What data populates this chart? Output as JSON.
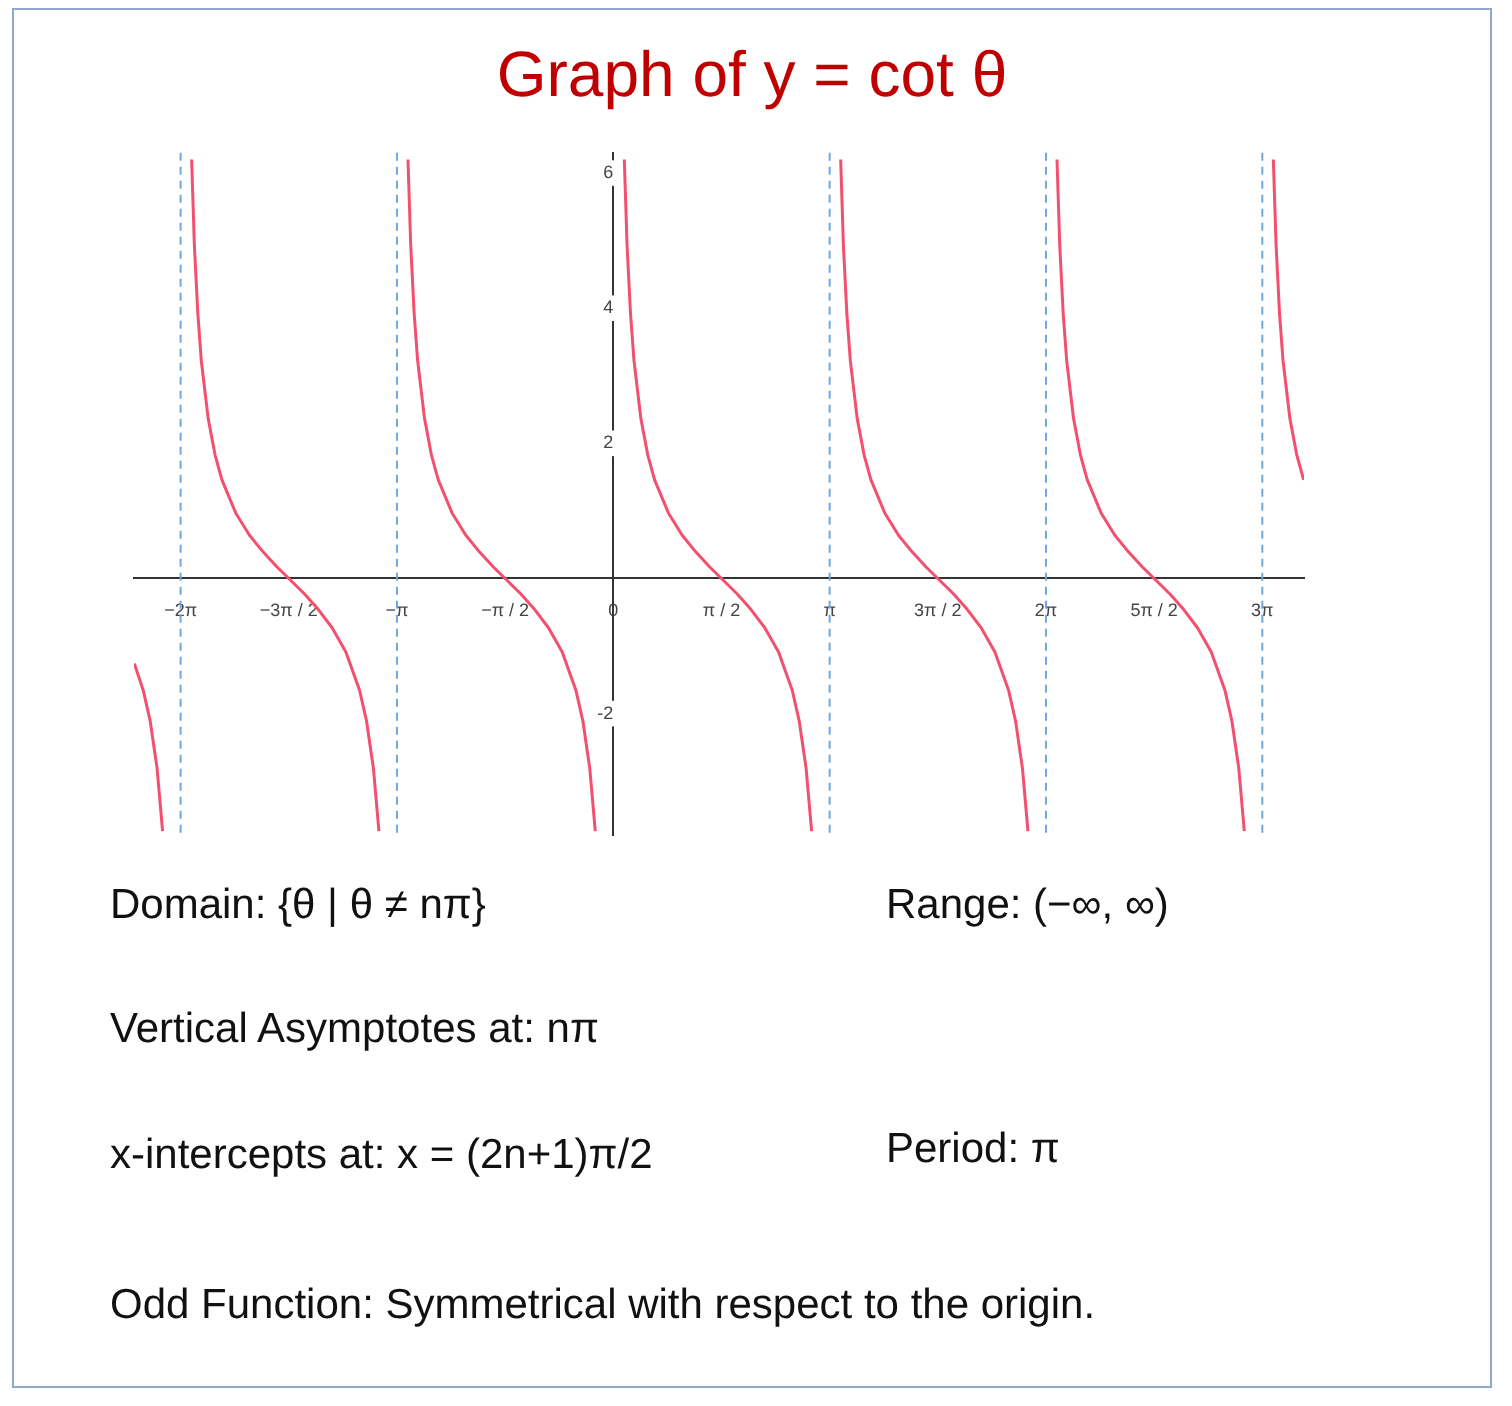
{
  "chart_data": {
    "type": "line",
    "title": "Graph of y = cot θ",
    "xlim": [
      -6.96,
      10.03
    ],
    "ylim": [
      -3.8,
      6.3
    ],
    "xticks": [
      {
        "value": -6.2832,
        "label": "−2π"
      },
      {
        "value": -4.7124,
        "label": "−3π / 2"
      },
      {
        "value": -3.1416,
        "label": "−π"
      },
      {
        "value": -1.5708,
        "label": "−π / 2"
      },
      {
        "value": 0,
        "label": "0"
      },
      {
        "value": 1.5708,
        "label": "π / 2"
      },
      {
        "value": 3.1416,
        "label": "π"
      },
      {
        "value": 4.7124,
        "label": "3π / 2"
      },
      {
        "value": 6.2832,
        "label": "2π"
      },
      {
        "value": 7.854,
        "label": "5π / 2"
      },
      {
        "value": 9.4248,
        "label": "3π"
      }
    ],
    "yticks": [
      -2,
      2,
      4,
      6
    ],
    "grid": false,
    "legend": false,
    "marker": "none",
    "line_style": "solid",
    "series": [
      {
        "color": "#f2506e",
        "x": [
          -6.9548,
          -6.8248,
          -6.7248,
          -6.6248,
          -6.5448
        ],
        "values": [
          -1.26,
          -1.66,
          -2.11,
          -2.81,
          -3.74
        ]
      },
      {
        "color": "#f2506e",
        "x": [
          -6.1232,
          -6.0832,
          -6.0332,
          -5.9832,
          -5.8832,
          -5.7832,
          -5.6832,
          -5.4832,
          -5.2832,
          -5.0832,
          -4.8832,
          -4.7124,
          -4.4832,
          -4.2832,
          -4.0832,
          -3.8832,
          -3.6832,
          -3.5832,
          -3.4832,
          -3.4032
        ],
        "values": [
          6.2,
          4.93,
          3.92,
          3.23,
          2.37,
          1.83,
          1.46,
          0.97,
          0.64,
          0.39,
          0.17,
          0,
          -0.23,
          -0.46,
          -0.73,
          -1.09,
          -1.66,
          -2.11,
          -2.81,
          -3.74
        ]
      },
      {
        "color": "#f2506e",
        "x": [
          -2.9816,
          -2.9416,
          -2.8916,
          -2.8416,
          -2.7416,
          -2.6416,
          -2.5416,
          -2.3416,
          -2.1416,
          -1.9416,
          -1.7416,
          -1.5708,
          -1.3416,
          -1.1416,
          -0.9416,
          -0.7416,
          -0.5416,
          -0.4416,
          -0.3416,
          -0.2616
        ],
        "values": [
          6.2,
          4.93,
          3.92,
          3.23,
          2.37,
          1.83,
          1.46,
          0.97,
          0.64,
          0.39,
          0.17,
          0,
          -0.23,
          -0.46,
          -0.73,
          -1.09,
          -1.66,
          -2.11,
          -2.81,
          -3.74
        ]
      },
      {
        "color": "#f2506e",
        "x": [
          0.16,
          0.2,
          0.25,
          0.3,
          0.4,
          0.5,
          0.6,
          0.8,
          1.0,
          1.2,
          1.4,
          1.5708,
          1.8,
          2.0,
          2.2,
          2.4,
          2.6,
          2.7,
          2.8,
          2.88
        ],
        "values": [
          6.2,
          4.93,
          3.92,
          3.23,
          2.37,
          1.83,
          1.46,
          0.97,
          0.64,
          0.39,
          0.17,
          0,
          -0.23,
          -0.46,
          -0.73,
          -1.09,
          -1.66,
          -2.11,
          -2.81,
          -3.74
        ]
      },
      {
        "color": "#f2506e",
        "x": [
          3.3016,
          3.3416,
          3.3916,
          3.4416,
          3.5416,
          3.6416,
          3.7416,
          3.9416,
          4.1416,
          4.3416,
          4.5416,
          4.7124,
          4.9416,
          5.1416,
          5.3416,
          5.5416,
          5.7416,
          5.8416,
          5.9416,
          6.0216
        ],
        "values": [
          6.2,
          4.93,
          3.92,
          3.23,
          2.37,
          1.83,
          1.46,
          0.97,
          0.64,
          0.39,
          0.17,
          0,
          -0.23,
          -0.46,
          -0.73,
          -1.09,
          -1.66,
          -2.11,
          -2.81,
          -3.74
        ]
      },
      {
        "color": "#f2506e",
        "x": [
          6.4432,
          6.4832,
          6.5332,
          6.5832,
          6.6832,
          6.7832,
          6.8832,
          7.0832,
          7.2832,
          7.4832,
          7.6832,
          7.854,
          8.0832,
          8.2832,
          8.4832,
          8.6832,
          8.8832,
          8.9832,
          9.0832,
          9.1632
        ],
        "values": [
          6.2,
          4.93,
          3.92,
          3.23,
          2.37,
          1.83,
          1.46,
          0.97,
          0.64,
          0.39,
          0.17,
          0,
          -0.23,
          -0.46,
          -0.73,
          -1.09,
          -1.66,
          -2.11,
          -2.81,
          -3.74
        ]
      },
      {
        "color": "#f2506e",
        "x": [
          9.5848,
          9.6248,
          9.6748,
          9.7248,
          9.8248,
          9.9248,
          10.0248
        ],
        "values": [
          6.2,
          4.93,
          3.92,
          3.23,
          2.37,
          1.83,
          1.46
        ]
      }
    ],
    "ref_lines": [
      {
        "axis": "x",
        "value": -6.2832,
        "color": "#6fa8dc",
        "line_style": "dashed"
      },
      {
        "axis": "x",
        "value": -3.1416,
        "color": "#6fa8dc",
        "line_style": "dashed"
      },
      {
        "axis": "x",
        "value": 3.1416,
        "color": "#6fa8dc",
        "line_style": "dashed"
      },
      {
        "axis": "x",
        "value": 6.2832,
        "color": "#6fa8dc",
        "line_style": "dashed"
      },
      {
        "axis": "x",
        "value": 9.4248,
        "color": "#6fa8dc",
        "line_style": "dashed"
      }
    ],
    "annotations": [
      "Domain: {θ | θ ≠ nπ}",
      "Range: (−∞, ∞)",
      "Vertical Asymptotes at: nπ",
      "x-intercepts at: x = (2n+1)π/2",
      "Period: π",
      "Odd Function: Symmetrical with respect to the origin."
    ]
  }
}
